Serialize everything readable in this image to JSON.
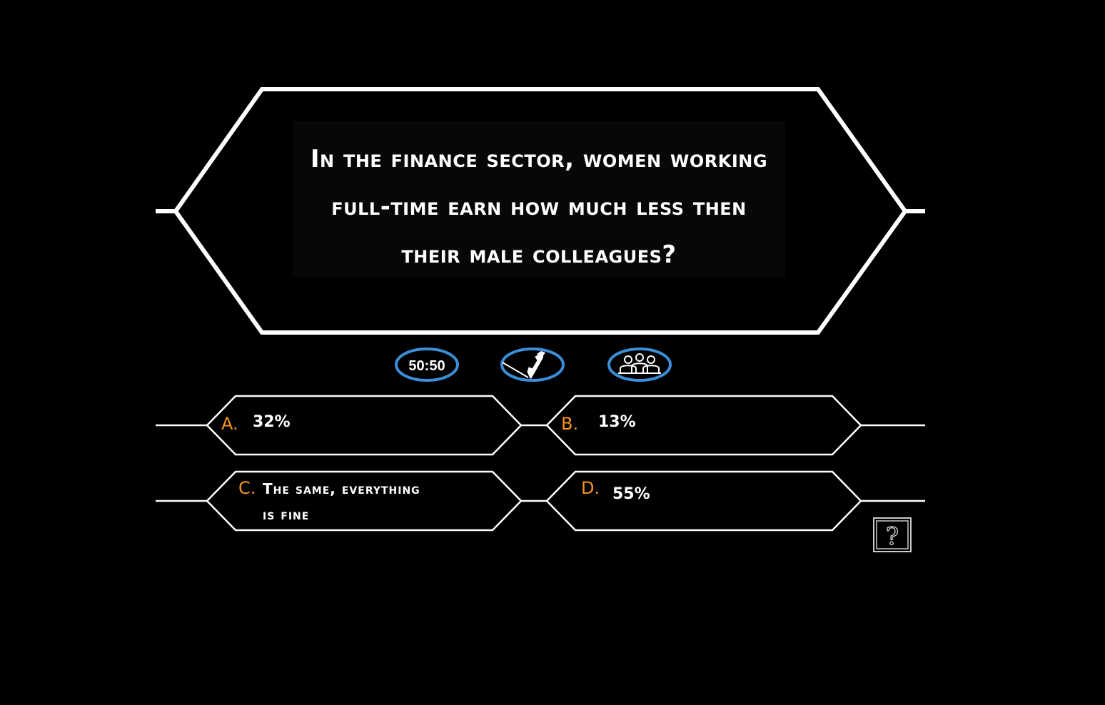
{
  "question": {
    "line1": "In the finance sector, women working",
    "line2": "full-time earn how much less then",
    "line3": "their male colleagues?"
  },
  "lifelines": [
    {
      "label": "50:50",
      "icon": "fifty-fifty-icon"
    },
    {
      "label": "",
      "icon": "phone-a-friend-icon"
    },
    {
      "label": "",
      "icon": "ask-the-audience-icon"
    }
  ],
  "answers": {
    "a": {
      "letter": "A.",
      "text": "32%"
    },
    "b": {
      "letter": "B.",
      "text": "13%"
    },
    "c": {
      "letter": "C.",
      "text_line1": "The same, everything",
      "text_line2": "is fine"
    },
    "d": {
      "letter": "D.",
      "text": "55%"
    }
  },
  "help": {
    "icon": "question-mark-icon",
    "glyph": "?"
  },
  "colors": {
    "background": "#000000",
    "frame": "#ffffff",
    "letter_accent": "#f7941d",
    "lifeline_ring": "#3a8fd8"
  }
}
